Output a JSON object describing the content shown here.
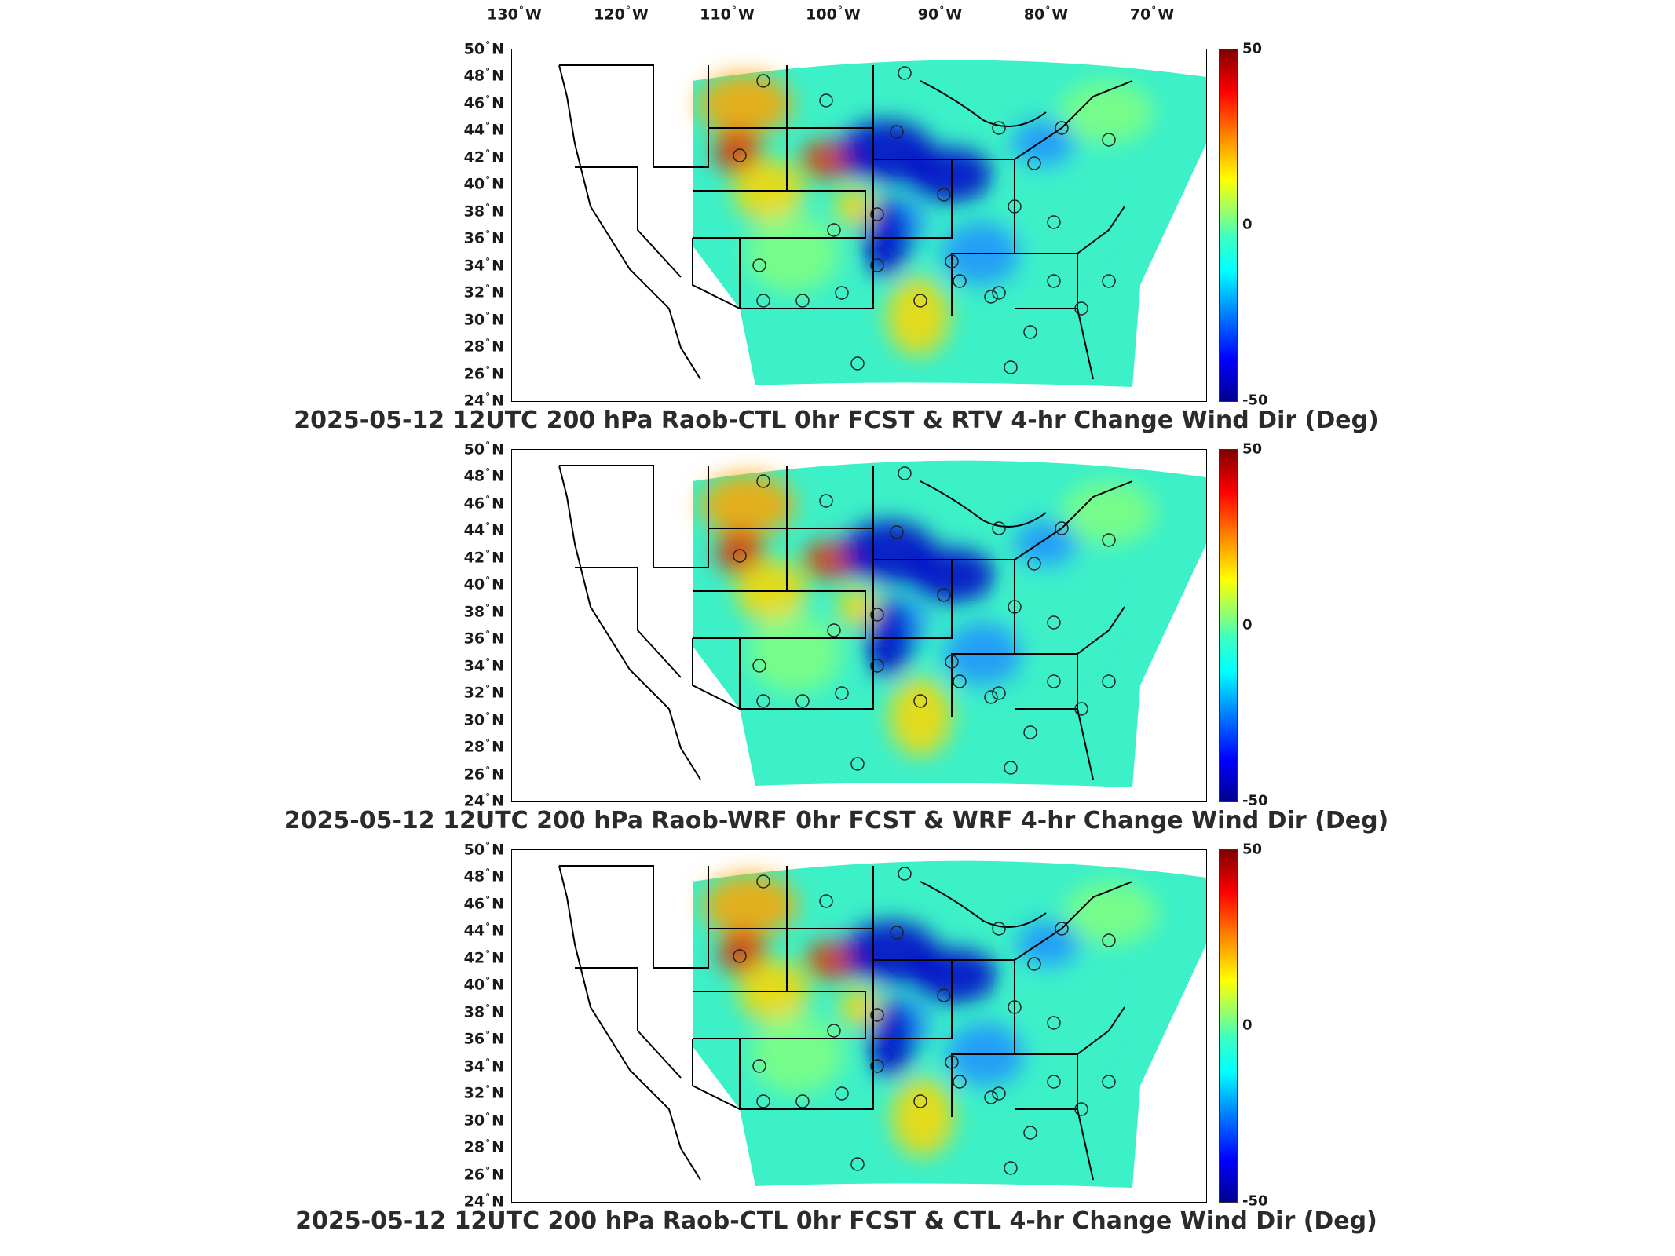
{
  "longitude_labels": [
    "130",
    "120",
    "110",
    "100",
    "90",
    "80",
    "70"
  ],
  "longitude_suffix": "W",
  "latitude_labels": [
    "50",
    "48",
    "46",
    "44",
    "42",
    "40",
    "38",
    "36",
    "34",
    "32",
    "30",
    "28",
    "26",
    "24"
  ],
  "latitude_suffix": "N",
  "degree_symbol": "°",
  "colorbar": {
    "max": "50",
    "mid": "0",
    "min": "-50",
    "colormap": "jet"
  },
  "panels": [
    {
      "title": "2025-05-12 12UTC 200 hPa Raob-CTL 0hr FCST & RTV 4-hr Change Wind Dir (Deg)"
    },
    {
      "title": "2025-05-12 12UTC 200 hPa Raob-WRF 0hr FCST & WRF 4-hr Change Wind Dir (Deg)"
    },
    {
      "title": "2025-05-12 12UTC 200 hPa Raob-CTL 0hr FCST & CTL 4-hr Change Wind Dir (Deg)"
    }
  ],
  "colors": {
    "negative_strong": "#0000c8",
    "negative": "#1e90ff",
    "neutral": "#3cf0c8",
    "positive": "#ffd700",
    "positive_strong": "#e03000"
  }
}
